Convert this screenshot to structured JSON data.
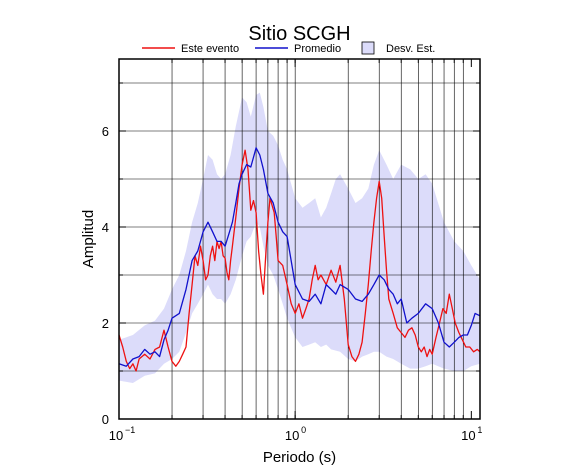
{
  "colors": {
    "event": "#ee1111",
    "mean": "#1111cc",
    "band_fill": "#dcdcfa",
    "band_stroke": "#000000",
    "grid": "#000000"
  },
  "chart_data": {
    "type": "line",
    "title": "Sitio SCGH",
    "xlabel": "Periodo (s)",
    "ylabel": "Amplitud",
    "xscale": "log",
    "xlim": [
      0.1,
      11.2
    ],
    "ylim": [
      0,
      7.5
    ],
    "grid": true,
    "legend_position": "top",
    "x_ticks": [
      {
        "value": 0.1,
        "base": "10",
        "exp": "−1"
      },
      {
        "value": 1,
        "base": "10",
        "exp": "0"
      },
      {
        "value": 10,
        "base": "10",
        "exp": "1"
      }
    ],
    "y_ticks": [
      0,
      2,
      4,
      6
    ],
    "legend": [
      {
        "label": "Este evento",
        "kind": "line",
        "color": "#ee1111"
      },
      {
        "label": "Promedio",
        "kind": "line",
        "color": "#1111cc"
      },
      {
        "label": "Desv. Est.",
        "kind": "box",
        "color": "#dcdcfa"
      }
    ],
    "series": [
      {
        "name": "Este evento",
        "color": "#ee1111",
        "points": [
          [
            0.1,
            1.75
          ],
          [
            0.105,
            1.5
          ],
          [
            0.11,
            1.2
          ],
          [
            0.115,
            1.05
          ],
          [
            0.12,
            1.15
          ],
          [
            0.125,
            1.0
          ],
          [
            0.13,
            1.25
          ],
          [
            0.14,
            1.35
          ],
          [
            0.15,
            1.25
          ],
          [
            0.16,
            1.45
          ],
          [
            0.17,
            1.5
          ],
          [
            0.18,
            1.85
          ],
          [
            0.19,
            1.5
          ],
          [
            0.2,
            1.2
          ],
          [
            0.21,
            1.1
          ],
          [
            0.22,
            1.2
          ],
          [
            0.23,
            1.35
          ],
          [
            0.24,
            1.5
          ],
          [
            0.25,
            2.2
          ],
          [
            0.26,
            2.8
          ],
          [
            0.27,
            3.4
          ],
          [
            0.28,
            3.2
          ],
          [
            0.29,
            3.6
          ],
          [
            0.3,
            3.3
          ],
          [
            0.31,
            2.9
          ],
          [
            0.32,
            3.0
          ],
          [
            0.33,
            3.4
          ],
          [
            0.34,
            3.6
          ],
          [
            0.35,
            3.3
          ],
          [
            0.36,
            3.7
          ],
          [
            0.37,
            3.55
          ],
          [
            0.38,
            3.7
          ],
          [
            0.39,
            3.4
          ],
          [
            0.4,
            3.35
          ],
          [
            0.41,
            3.05
          ],
          [
            0.42,
            2.9
          ],
          [
            0.43,
            3.3
          ],
          [
            0.44,
            3.6
          ],
          [
            0.46,
            4.2
          ],
          [
            0.48,
            4.8
          ],
          [
            0.5,
            5.3
          ],
          [
            0.52,
            5.6
          ],
          [
            0.54,
            5.2
          ],
          [
            0.56,
            4.35
          ],
          [
            0.58,
            4.55
          ],
          [
            0.6,
            4.3
          ],
          [
            0.62,
            3.5
          ],
          [
            0.64,
            3.0
          ],
          [
            0.66,
            2.6
          ],
          [
            0.68,
            3.4
          ],
          [
            0.7,
            4.1
          ],
          [
            0.72,
            4.6
          ],
          [
            0.74,
            4.45
          ],
          [
            0.76,
            4.3
          ],
          [
            0.78,
            3.8
          ],
          [
            0.8,
            3.3
          ],
          [
            0.85,
            3.2
          ],
          [
            0.9,
            2.8
          ],
          [
            0.95,
            2.4
          ],
          [
            1.0,
            2.2
          ],
          [
            1.05,
            2.4
          ],
          [
            1.1,
            2.1
          ],
          [
            1.15,
            2.3
          ],
          [
            1.2,
            2.5
          ],
          [
            1.25,
            2.9
          ],
          [
            1.3,
            3.2
          ],
          [
            1.35,
            2.9
          ],
          [
            1.4,
            3.0
          ],
          [
            1.5,
            2.8
          ],
          [
            1.6,
            3.1
          ],
          [
            1.7,
            2.85
          ],
          [
            1.8,
            3.2
          ],
          [
            1.9,
            2.5
          ],
          [
            2.0,
            1.55
          ],
          [
            2.1,
            1.3
          ],
          [
            2.2,
            1.2
          ],
          [
            2.3,
            1.35
          ],
          [
            2.4,
            1.6
          ],
          [
            2.5,
            2.2
          ],
          [
            2.6,
            2.8
          ],
          [
            2.7,
            3.5
          ],
          [
            2.8,
            4.1
          ],
          [
            2.9,
            4.6
          ],
          [
            3.0,
            4.95
          ],
          [
            3.1,
            4.6
          ],
          [
            3.2,
            3.8
          ],
          [
            3.3,
            3.1
          ],
          [
            3.4,
            2.5
          ],
          [
            3.6,
            2.2
          ],
          [
            3.8,
            1.9
          ],
          [
            4.0,
            1.8
          ],
          [
            4.2,
            1.7
          ],
          [
            4.4,
            1.85
          ],
          [
            4.6,
            1.9
          ],
          [
            4.8,
            1.75
          ],
          [
            5.0,
            1.5
          ],
          [
            5.2,
            1.4
          ],
          [
            5.4,
            1.5
          ],
          [
            5.6,
            1.3
          ],
          [
            5.8,
            1.45
          ],
          [
            6.0,
            1.35
          ],
          [
            6.3,
            1.7
          ],
          [
            6.6,
            2.0
          ],
          [
            6.9,
            2.3
          ],
          [
            7.2,
            2.2
          ],
          [
            7.5,
            2.6
          ],
          [
            7.8,
            2.3
          ],
          [
            8.1,
            2.0
          ],
          [
            8.5,
            1.8
          ],
          [
            8.9,
            1.65
          ],
          [
            9.3,
            1.5
          ],
          [
            9.8,
            1.5
          ],
          [
            10.3,
            1.4
          ],
          [
            10.8,
            1.45
          ],
          [
            11.2,
            1.4
          ]
        ]
      },
      {
        "name": "Promedio",
        "color": "#1111cc",
        "points": [
          [
            0.1,
            1.15
          ],
          [
            0.11,
            1.1
          ],
          [
            0.12,
            1.25
          ],
          [
            0.13,
            1.3
          ],
          [
            0.14,
            1.45
          ],
          [
            0.15,
            1.35
          ],
          [
            0.16,
            1.4
          ],
          [
            0.17,
            1.3
          ],
          [
            0.18,
            1.65
          ],
          [
            0.19,
            1.85
          ],
          [
            0.2,
            2.1
          ],
          [
            0.22,
            2.2
          ],
          [
            0.24,
            2.7
          ],
          [
            0.26,
            3.3
          ],
          [
            0.28,
            3.5
          ],
          [
            0.3,
            3.9
          ],
          [
            0.32,
            4.1
          ],
          [
            0.34,
            3.9
          ],
          [
            0.36,
            3.7
          ],
          [
            0.38,
            3.7
          ],
          [
            0.4,
            3.6
          ],
          [
            0.42,
            3.85
          ],
          [
            0.44,
            4.1
          ],
          [
            0.46,
            4.5
          ],
          [
            0.48,
            4.9
          ],
          [
            0.5,
            5.1
          ],
          [
            0.53,
            5.3
          ],
          [
            0.56,
            5.25
          ],
          [
            0.6,
            5.65
          ],
          [
            0.63,
            5.5
          ],
          [
            0.66,
            5.2
          ],
          [
            0.7,
            4.7
          ],
          [
            0.75,
            4.5
          ],
          [
            0.8,
            4.1
          ],
          [
            0.85,
            3.9
          ],
          [
            0.9,
            3.8
          ],
          [
            1.0,
            2.8
          ],
          [
            1.1,
            2.5
          ],
          [
            1.2,
            2.45
          ],
          [
            1.3,
            2.6
          ],
          [
            1.4,
            2.4
          ],
          [
            1.5,
            2.8
          ],
          [
            1.6,
            2.7
          ],
          [
            1.7,
            2.6
          ],
          [
            1.8,
            2.8
          ],
          [
            2.0,
            2.7
          ],
          [
            2.2,
            2.5
          ],
          [
            2.4,
            2.45
          ],
          [
            2.6,
            2.6
          ],
          [
            2.8,
            2.8
          ],
          [
            3.0,
            3.0
          ],
          [
            3.2,
            2.9
          ],
          [
            3.4,
            2.7
          ],
          [
            3.6,
            2.6
          ],
          [
            3.8,
            2.4
          ],
          [
            4.0,
            2.5
          ],
          [
            4.3,
            2.0
          ],
          [
            4.6,
            2.1
          ],
          [
            5.0,
            2.2
          ],
          [
            5.5,
            2.4
          ],
          [
            6.0,
            2.3
          ],
          [
            6.5,
            2.0
          ],
          [
            7.0,
            1.6
          ],
          [
            7.5,
            1.5
          ],
          [
            8.0,
            1.6
          ],
          [
            8.5,
            1.7
          ],
          [
            9.0,
            1.75
          ],
          [
            9.5,
            1.75
          ],
          [
            10.0,
            1.95
          ],
          [
            10.5,
            2.2
          ],
          [
            11.2,
            2.15
          ]
        ]
      },
      {
        "name": "Desv. Est.",
        "color": "#dcdcfa",
        "kind": "band",
        "upper": [
          [
            0.1,
            1.65
          ],
          [
            0.12,
            1.75
          ],
          [
            0.14,
            1.95
          ],
          [
            0.16,
            2.05
          ],
          [
            0.18,
            2.3
          ],
          [
            0.2,
            2.7
          ],
          [
            0.22,
            3.0
          ],
          [
            0.24,
            3.5
          ],
          [
            0.26,
            4.1
          ],
          [
            0.28,
            4.5
          ],
          [
            0.3,
            5.0
          ],
          [
            0.32,
            5.5
          ],
          [
            0.34,
            5.4
          ],
          [
            0.36,
            5.1
          ],
          [
            0.38,
            5.0
          ],
          [
            0.4,
            5.1
          ],
          [
            0.43,
            5.5
          ],
          [
            0.46,
            6.1
          ],
          [
            0.5,
            6.7
          ],
          [
            0.53,
            6.6
          ],
          [
            0.56,
            6.3
          ],
          [
            0.6,
            6.75
          ],
          [
            0.63,
            6.8
          ],
          [
            0.66,
            6.5
          ],
          [
            0.7,
            6.0
          ],
          [
            0.75,
            5.9
          ],
          [
            0.8,
            5.7
          ],
          [
            0.85,
            5.4
          ],
          [
            0.9,
            5.2
          ],
          [
            1.0,
            4.6
          ],
          [
            1.1,
            4.4
          ],
          [
            1.2,
            4.5
          ],
          [
            1.3,
            4.6
          ],
          [
            1.4,
            4.2
          ],
          [
            1.5,
            4.4
          ],
          [
            1.6,
            4.7
          ],
          [
            1.7,
            5.0
          ],
          [
            1.8,
            5.1
          ],
          [
            2.0,
            4.8
          ],
          [
            2.2,
            4.5
          ],
          [
            2.4,
            4.6
          ],
          [
            2.6,
            4.8
          ],
          [
            2.8,
            5.3
          ],
          [
            3.0,
            5.6
          ],
          [
            3.3,
            5.3
          ],
          [
            3.6,
            5.0
          ],
          [
            4.0,
            5.3
          ],
          [
            4.5,
            5.2
          ],
          [
            5.0,
            5.0
          ],
          [
            5.5,
            5.1
          ],
          [
            6.0,
            4.9
          ],
          [
            7.0,
            4.1
          ],
          [
            8.0,
            3.7
          ],
          [
            9.0,
            3.5
          ],
          [
            10.0,
            3.2
          ],
          [
            11.2,
            2.9
          ]
        ],
        "lower": [
          [
            0.1,
            0.8
          ],
          [
            0.12,
            0.75
          ],
          [
            0.14,
            0.9
          ],
          [
            0.16,
            0.95
          ],
          [
            0.18,
            1.15
          ],
          [
            0.2,
            1.25
          ],
          [
            0.22,
            1.4
          ],
          [
            0.24,
            1.8
          ],
          [
            0.26,
            2.2
          ],
          [
            0.28,
            2.4
          ],
          [
            0.3,
            2.6
          ],
          [
            0.32,
            2.8
          ],
          [
            0.34,
            2.6
          ],
          [
            0.36,
            2.5
          ],
          [
            0.38,
            2.5
          ],
          [
            0.4,
            2.4
          ],
          [
            0.43,
            2.6
          ],
          [
            0.46,
            2.9
          ],
          [
            0.5,
            3.4
          ],
          [
            0.53,
            3.7
          ],
          [
            0.56,
            3.8
          ],
          [
            0.6,
            4.1
          ],
          [
            0.63,
            4.0
          ],
          [
            0.66,
            3.6
          ],
          [
            0.7,
            3.2
          ],
          [
            0.75,
            3.0
          ],
          [
            0.8,
            2.7
          ],
          [
            0.85,
            2.4
          ],
          [
            0.9,
            2.1
          ],
          [
            1.0,
            1.7
          ],
          [
            1.1,
            1.5
          ],
          [
            1.2,
            1.55
          ],
          [
            1.3,
            1.6
          ],
          [
            1.4,
            1.5
          ],
          [
            1.5,
            1.55
          ],
          [
            1.6,
            1.45
          ],
          [
            1.8,
            1.4
          ],
          [
            2.0,
            1.25
          ],
          [
            2.2,
            1.2
          ],
          [
            2.4,
            1.3
          ],
          [
            2.6,
            1.35
          ],
          [
            2.8,
            1.4
          ],
          [
            3.0,
            1.4
          ],
          [
            3.3,
            1.3
          ],
          [
            3.6,
            1.25
          ],
          [
            4.0,
            1.15
          ],
          [
            4.5,
            1.05
          ],
          [
            5.0,
            1.05
          ],
          [
            5.5,
            1.1
          ],
          [
            6.0,
            1.15
          ],
          [
            7.0,
            1.05
          ],
          [
            8.0,
            1.0
          ],
          [
            9.0,
            1.0
          ],
          [
            10.0,
            1.1
          ],
          [
            11.2,
            1.15
          ]
        ]
      }
    ]
  }
}
